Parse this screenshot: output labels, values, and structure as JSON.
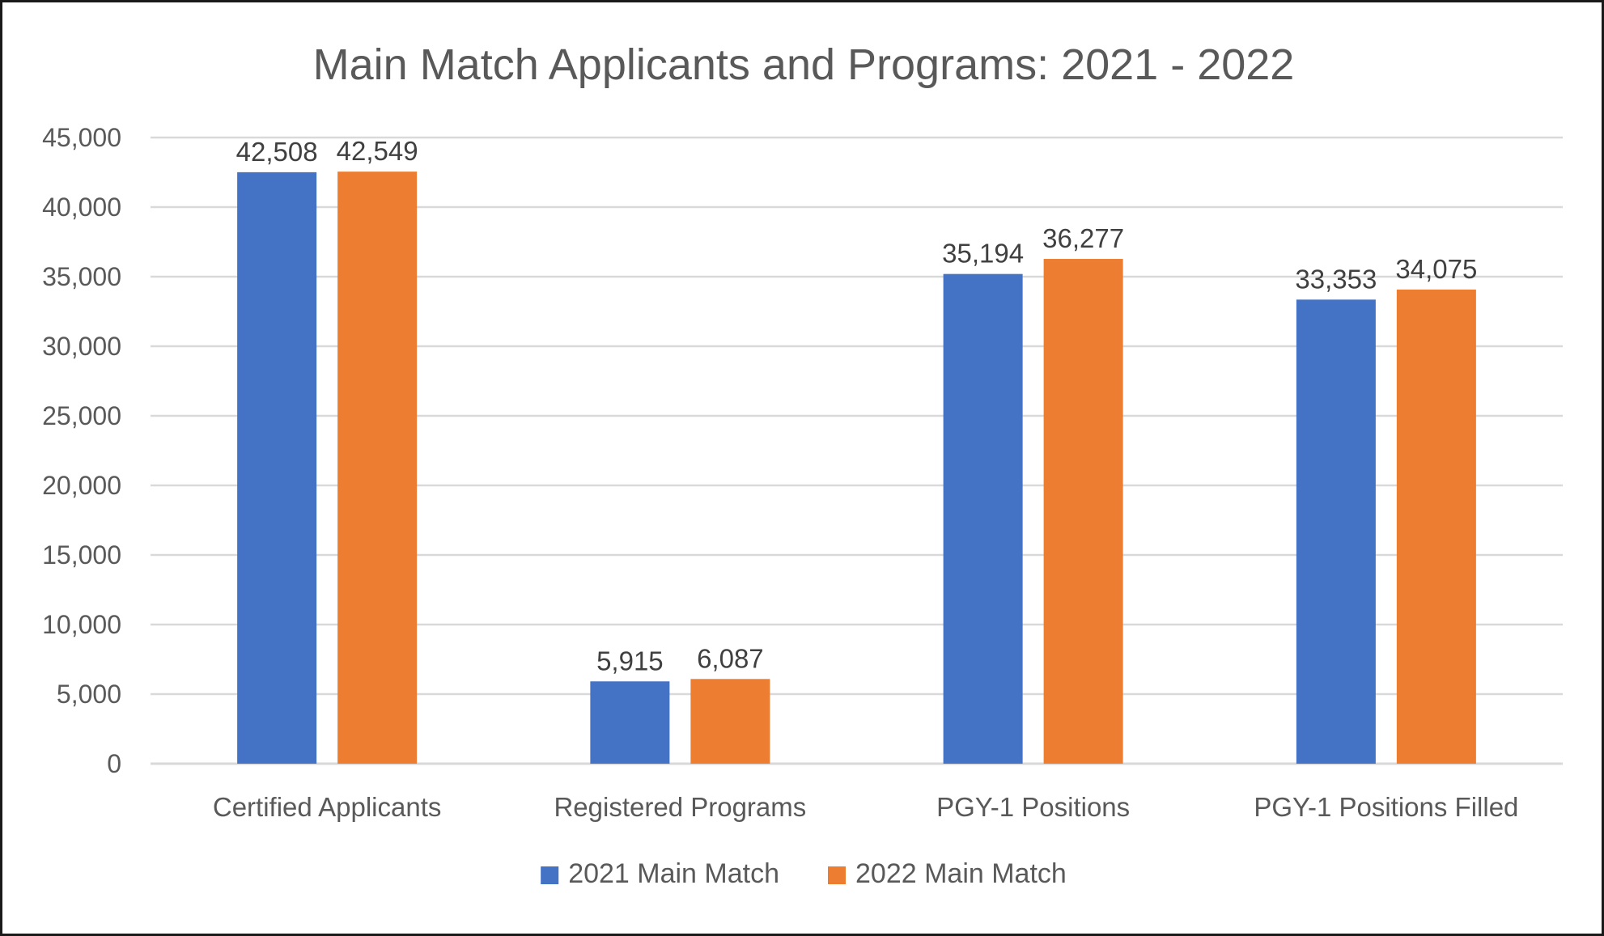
{
  "chart_data": {
    "type": "bar",
    "title": "Main Match Applicants and Programs: 2021 - 2022",
    "categories": [
      "Certified Applicants",
      "Registered Programs",
      "PGY-1 Positions",
      "PGY-1 Positions Filled"
    ],
    "series": [
      {
        "name": "2021 Main Match",
        "color": "#4472C4",
        "values": [
          42508,
          5915,
          35194,
          33353
        ],
        "labels": [
          "42,508",
          "5,915",
          "35,194",
          "33,353"
        ]
      },
      {
        "name": "2022 Main Match",
        "color": "#ED7D31",
        "values": [
          42549,
          6087,
          36277,
          34075
        ],
        "labels": [
          "42,549",
          "6,087",
          "36,277",
          "34,075"
        ]
      }
    ],
    "ylim": [
      0,
      45000
    ],
    "yticks": [
      0,
      5000,
      10000,
      15000,
      20000,
      25000,
      30000,
      35000,
      40000,
      45000
    ],
    "ytick_labels": [
      "0",
      "5,000",
      "10,000",
      "15,000",
      "20,000",
      "25,000",
      "30,000",
      "35,000",
      "40,000",
      "45,000"
    ],
    "grid": true,
    "legend": "bottom"
  }
}
